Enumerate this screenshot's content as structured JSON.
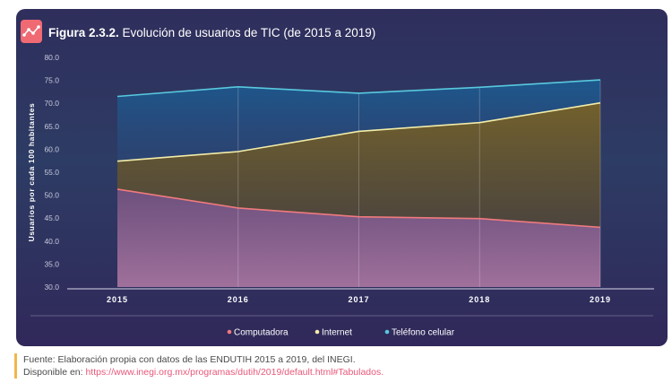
{
  "figure": {
    "number": "Figura 2.3.2.",
    "title": "Evolución de usuarios de TIC (de 2015 a 2019)"
  },
  "source": {
    "line1": "Fuente: Elaboración propia con datos de las ENDUTIH 2015 a 2019, del INEGI.",
    "available_prefix": "Disponible en:",
    "url": "https://www.inegi.org.mx/programas/dutih/2019/default.html#Tabulados."
  },
  "chart_data": {
    "type": "line",
    "x": [
      "2015",
      "2016",
      "2017",
      "2018",
      "2019"
    ],
    "ylabel": "Usuarios por cada 100 habitantes",
    "ylim": [
      30,
      80
    ],
    "yticks": [
      "30.0",
      "35.0",
      "40.0",
      "45.0",
      "50.0",
      "55.0",
      "60.0",
      "65.0",
      "70.0",
      "75.0",
      "80.0"
    ],
    "legend_position": "bottom",
    "grid": "vertical",
    "series": [
      {
        "name": "Computadora",
        "values": [
          51.3,
          47.2,
          45.3,
          44.9,
          43.0
        ],
        "color": "#f07a7e"
      },
      {
        "name": "Internet",
        "values": [
          57.4,
          59.5,
          63.9,
          65.8,
          70.1
        ],
        "color": "#f4eda8"
      },
      {
        "name": "Teléfono celular",
        "values": [
          71.5,
          73.6,
          72.2,
          73.5,
          75.1
        ],
        "color": "#58c9de"
      }
    ]
  }
}
